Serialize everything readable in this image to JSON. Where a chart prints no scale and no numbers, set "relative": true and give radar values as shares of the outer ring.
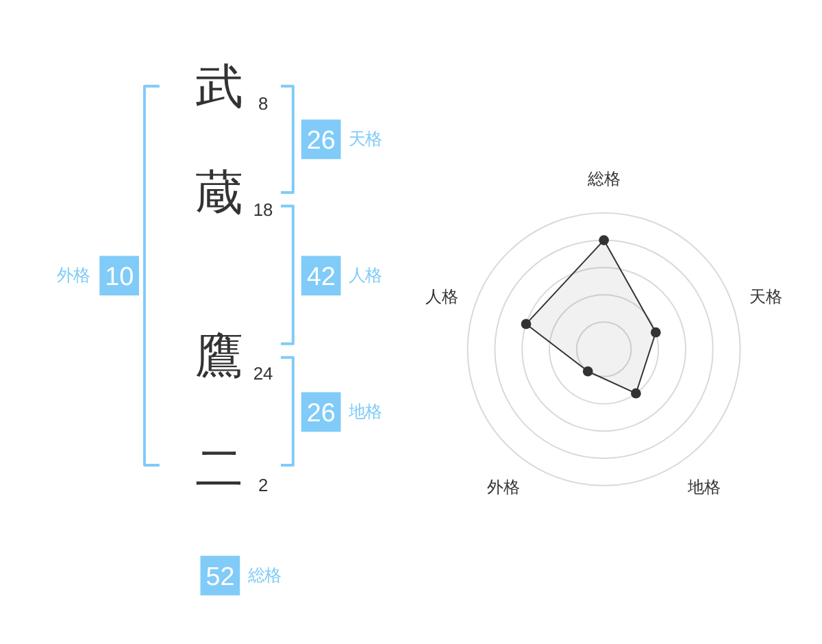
{
  "chart_data": [
    {
      "type": "other",
      "categories": [
        "武",
        "蔵",
        "鷹",
        "二"
      ],
      "values": [
        8,
        18,
        24,
        2
      ],
      "data_labels": true
    },
    {
      "type": "other",
      "categories": [
        "天格",
        "人格",
        "地格",
        "外格",
        "総格"
      ],
      "values": [
        26,
        42,
        26,
        10,
        52
      ],
      "data_labels": true,
      "color": "#80cbf8"
    },
    {
      "type": "radar",
      "categories": [
        "総格",
        "天格",
        "地格",
        "外格",
        "人格"
      ],
      "relative": true,
      "grid": true,
      "marker": "circle",
      "series": [
        {
          "color": "#333333",
          "values": [
            0.8,
            0.4,
            0.4,
            0.2,
            0.6
          ]
        }
      ]
    }
  ]
}
